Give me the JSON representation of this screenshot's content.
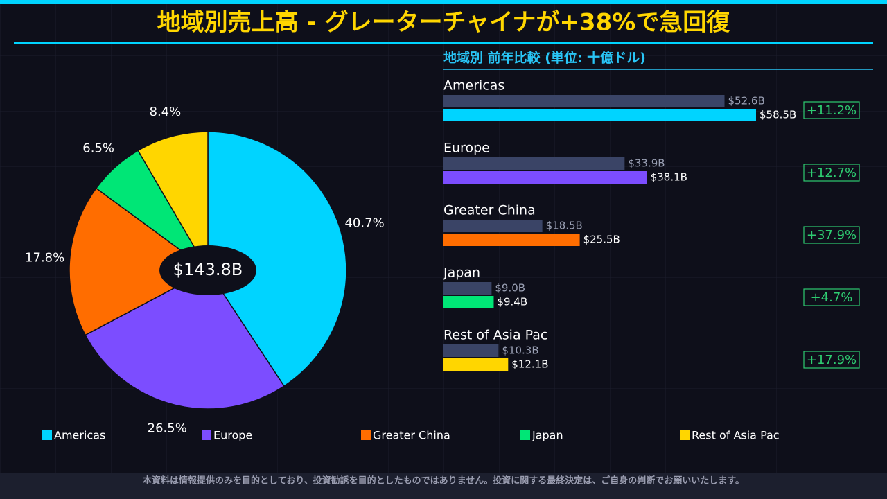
{
  "title": "地域別売上高 - グレーターチャイナが+38%で急回復",
  "footer": "本資料は情報提供のみを目的としており、投資勧誘を目的としたものではありません。投資に関する最終決定は、ご自身の判断でお願いいたします。",
  "chart_data": [
    {
      "type": "pie",
      "categories": [
        "Americas",
        "Europe",
        "Greater China",
        "Japan",
        "Rest of Asia Pac"
      ],
      "values": [
        40.7,
        26.5,
        17.8,
        6.5,
        8.4
      ],
      "value_labels": [
        "40.7%",
        "26.5%",
        "17.8%",
        "6.5%",
        "8.4%"
      ],
      "colors": [
        "#00d4ff",
        "#7c4dff",
        "#ff6d00",
        "#00e676",
        "#ffd600"
      ],
      "center_label": "$143.8B"
    },
    {
      "type": "bar",
      "title": "地域別 前年比較 (単位: 十億ドル)",
      "categories": [
        "Americas",
        "Europe",
        "Greater China",
        "Japan",
        "Rest of Asia Pac"
      ],
      "series": [
        {
          "color": "#3a4466",
          "values": [
            52.6,
            33.9,
            18.5,
            9.0,
            10.3
          ],
          "value_labels": [
            "$52.6B",
            "$33.9B",
            "$18.5B",
            "$9.0B",
            "$10.3B"
          ]
        },
        {
          "colors": [
            "#00d4ff",
            "#7c4dff",
            "#ff6d00",
            "#00e676",
            "#ffd600"
          ],
          "values": [
            58.5,
            38.1,
            25.5,
            9.4,
            12.1
          ],
          "value_labels": [
            "$58.5B",
            "$38.1B",
            "$25.5B",
            "$9.4B",
            "$12.1B"
          ]
        }
      ],
      "change_labels": [
        "+11.2%",
        "+12.7%",
        "+37.9%",
        "+4.7%",
        "+17.9%"
      ]
    }
  ]
}
